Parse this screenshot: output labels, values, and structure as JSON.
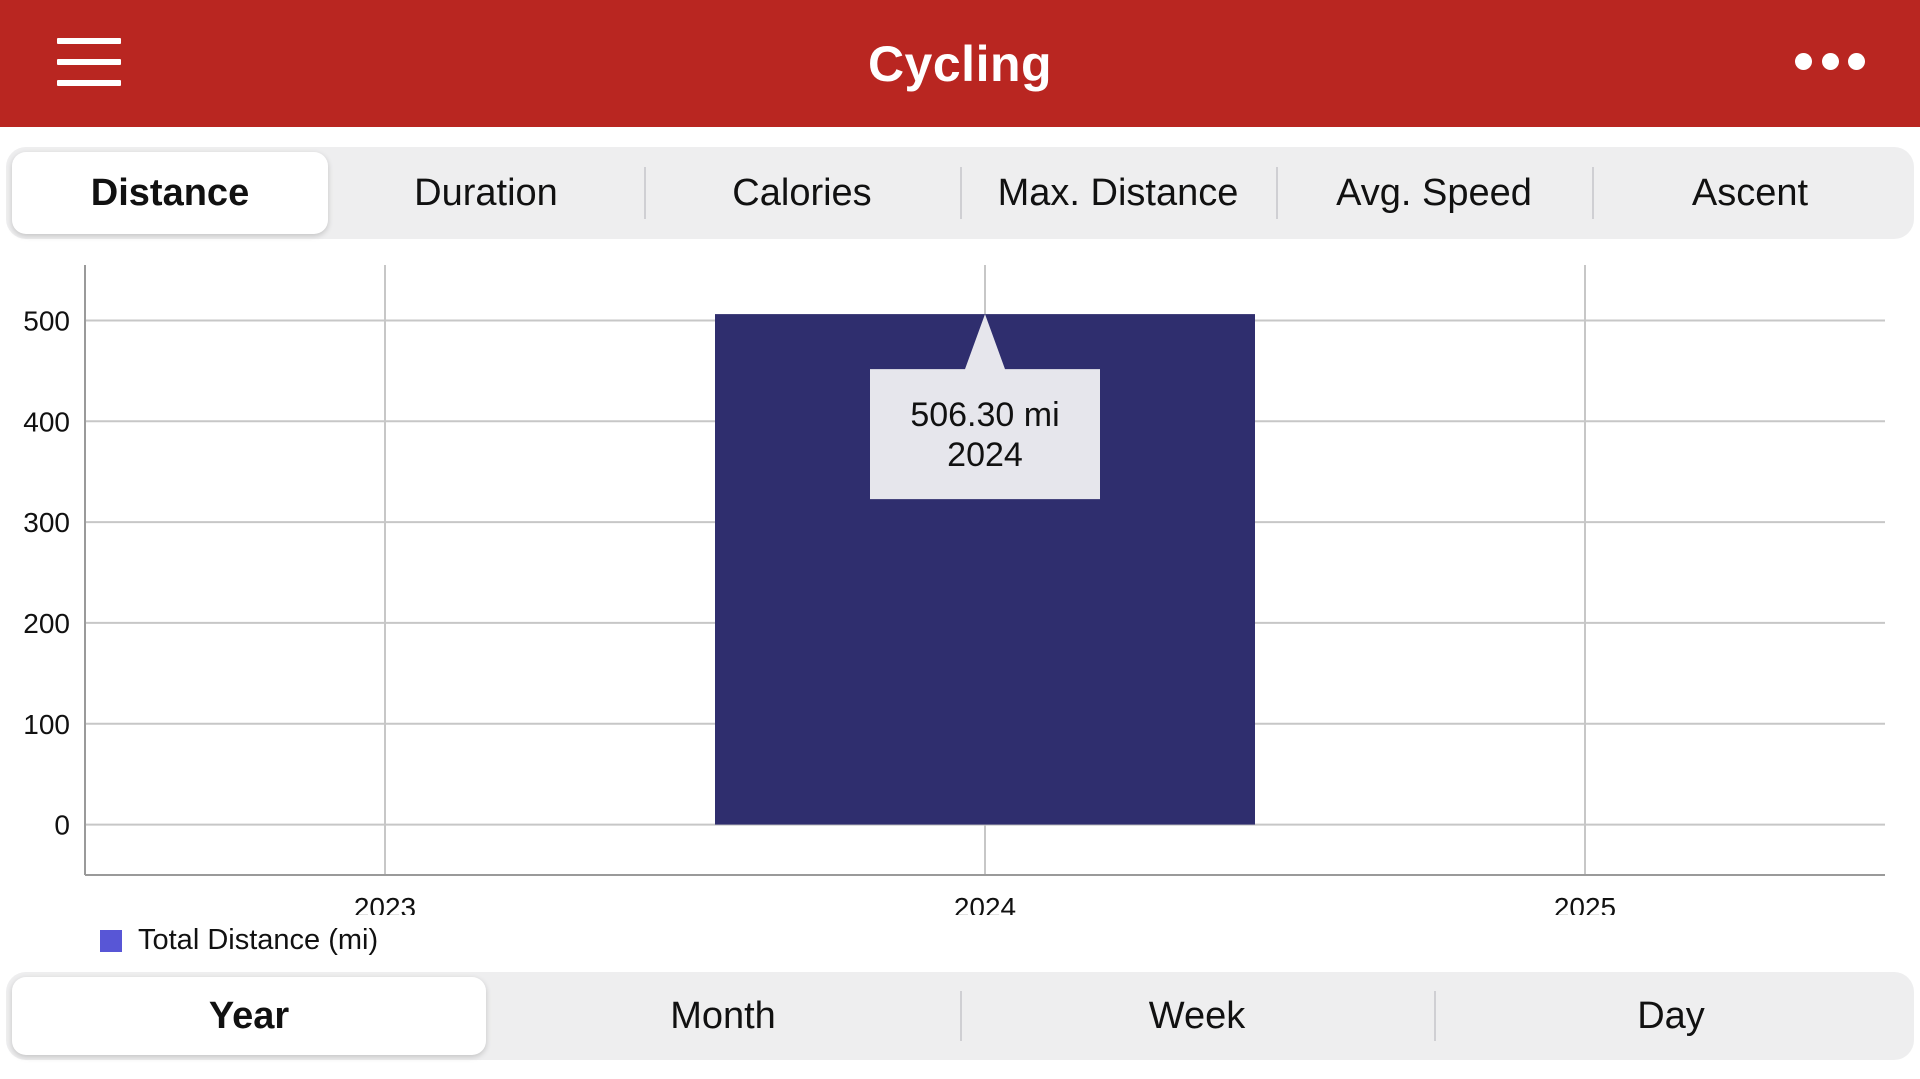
{
  "navbar": {
    "title": "Cycling",
    "menu_icon": "hamburger-menu-icon",
    "more_icon": "ellipsis-icon",
    "bg_color": "#b92621"
  },
  "metric_tabs": {
    "items": [
      "Distance",
      "Duration",
      "Calories",
      "Max. Distance",
      "Avg. Speed",
      "Ascent"
    ],
    "selected": "Distance"
  },
  "period_tabs": {
    "items": [
      "Year",
      "Month",
      "Week",
      "Day"
    ],
    "selected": "Year"
  },
  "chart_data": {
    "type": "bar",
    "categories": [
      "2023",
      "2024",
      "2025"
    ],
    "series": [
      {
        "name": "Total Distance (mi)",
        "values": [
          null,
          506.3,
          null
        ],
        "color": "#2f2e6e",
        "legend_color": "#5856d6"
      }
    ],
    "y_ticks": [
      0,
      100,
      200,
      300,
      400,
      500
    ],
    "ylim": [
      -50,
      555
    ],
    "grid": true,
    "legend": "bottom-left",
    "tooltip": {
      "value": "506.30 mi",
      "label": "2024"
    }
  }
}
